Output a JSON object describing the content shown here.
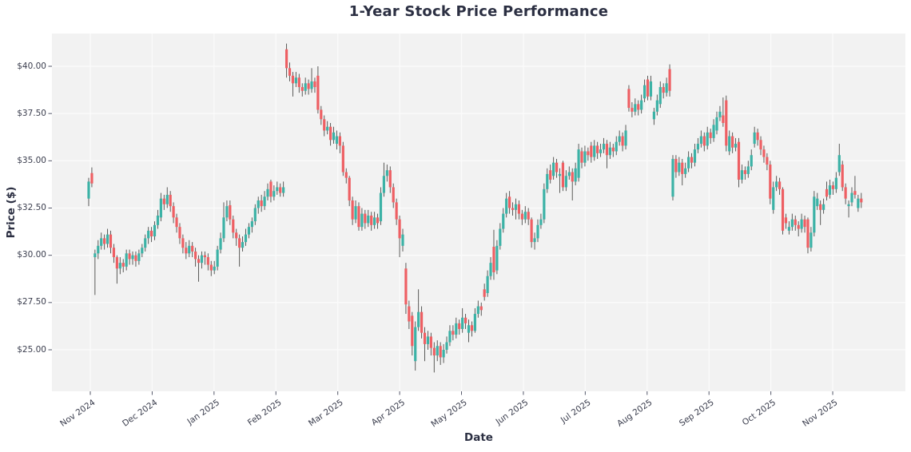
{
  "figure": {
    "title": "1-Year Stock Price Performance"
  },
  "chart_data": {
    "type": "candlestick",
    "title": "1-Year Stock Price Performance",
    "xlabel": "Date",
    "ylabel": "Price ($)",
    "x_tick_labels": [
      "Nov 2024",
      "Dec 2024",
      "Jan 2025",
      "Feb 2025",
      "Mar 2025",
      "Apr 2025",
      "May 2025",
      "Jun 2025",
      "Jul 2025",
      "Aug 2025",
      "Sep 2025",
      "Oct 2025",
      "Nov 2025"
    ],
    "y_ticks": [
      25.0,
      27.5,
      30.0,
      32.5,
      35.0,
      37.5,
      40.0
    ],
    "y_tick_labels": [
      "$25.00",
      "$27.50",
      "$30.00",
      "$32.50",
      "$35.00",
      "$37.50",
      "$40.00"
    ],
    "ylim": [
      21.9,
      41.75
    ],
    "grid": true,
    "legend": "none",
    "up_color": "#3cb2a6",
    "down_color": "#ee5f63",
    "wick_color": "#4a4a48",
    "plot_bg": "#f2f2f2",
    "grid_color": "#fbfbfb",
    "candles_format": [
      "open",
      "high",
      "low",
      "close"
    ],
    "candles": [
      [
        33.0,
        34.1,
        32.6,
        33.9
      ],
      [
        34.35,
        34.65,
        33.6,
        33.8
      ],
      [
        29.9,
        30.3,
        27.9,
        30.1
      ],
      [
        30.1,
        30.8,
        29.8,
        30.5
      ],
      [
        30.5,
        31.2,
        30.3,
        30.9
      ],
      [
        30.9,
        31.1,
        30.3,
        30.6
      ],
      [
        30.6,
        31.4,
        30.4,
        31.1
      ],
      [
        31.1,
        31.3,
        30.1,
        30.4
      ],
      [
        30.4,
        30.6,
        29.6,
        29.9
      ],
      [
        29.9,
        30.0,
        28.5,
        29.3
      ],
      [
        29.3,
        29.9,
        29.0,
        29.6
      ],
      [
        29.6,
        29.8,
        29.1,
        29.4
      ],
      [
        29.4,
        30.3,
        29.2,
        30.1
      ],
      [
        30.1,
        30.3,
        29.5,
        29.8
      ],
      [
        29.8,
        30.2,
        29.5,
        30.0
      ],
      [
        30.0,
        30.2,
        29.4,
        29.7
      ],
      [
        29.7,
        30.3,
        29.5,
        30.1
      ],
      [
        30.1,
        30.6,
        29.9,
        30.4
      ],
      [
        30.4,
        31.1,
        30.2,
        30.9
      ],
      [
        30.9,
        31.5,
        30.6,
        31.3
      ],
      [
        31.3,
        31.5,
        30.7,
        31.0
      ],
      [
        31.0,
        31.8,
        30.8,
        31.6
      ],
      [
        31.6,
        32.4,
        31.4,
        32.1
      ],
      [
        32.0,
        33.3,
        31.8,
        33.0
      ],
      [
        33.0,
        33.2,
        32.4,
        32.7
      ],
      [
        32.7,
        33.6,
        32.5,
        33.2
      ],
      [
        33.2,
        33.4,
        32.3,
        32.6
      ],
      [
        32.6,
        32.8,
        31.7,
        32.0
      ],
      [
        32.0,
        32.2,
        31.2,
        31.5
      ],
      [
        31.5,
        31.7,
        30.6,
        30.9
      ],
      [
        30.9,
        31.1,
        30.1,
        30.4
      ],
      [
        30.4,
        30.7,
        29.8,
        30.1
      ],
      [
        30.1,
        30.8,
        29.9,
        30.5
      ],
      [
        30.5,
        30.7,
        29.9,
        30.2
      ],
      [
        30.2,
        30.4,
        29.4,
        29.8
      ],
      [
        29.8,
        30.0,
        28.6,
        29.6
      ],
      [
        29.6,
        30.2,
        29.3,
        30.0
      ],
      [
        30.0,
        30.2,
        29.5,
        29.9
      ],
      [
        29.9,
        30.1,
        29.2,
        29.5
      ],
      [
        29.5,
        29.7,
        28.9,
        29.2
      ],
      [
        29.2,
        29.7,
        29.0,
        29.4
      ],
      [
        29.4,
        30.5,
        29.2,
        30.3
      ],
      [
        30.3,
        31.2,
        30.1,
        30.9
      ],
      [
        30.9,
        32.8,
        30.7,
        32.0
      ],
      [
        32.0,
        32.9,
        31.8,
        32.6
      ],
      [
        32.65,
        32.9,
        31.6,
        31.9
      ],
      [
        31.9,
        32.1,
        30.9,
        31.2
      ],
      [
        31.2,
        31.4,
        30.5,
        30.9
      ],
      [
        30.9,
        31.1,
        29.4,
        30.4
      ],
      [
        30.4,
        31.0,
        30.2,
        30.7
      ],
      [
        30.7,
        31.4,
        30.5,
        31.1
      ],
      [
        31.1,
        31.7,
        30.9,
        31.5
      ],
      [
        31.5,
        32.0,
        31.2,
        31.8
      ],
      [
        31.8,
        32.7,
        31.6,
        32.5
      ],
      [
        32.5,
        33.1,
        32.2,
        32.9
      ],
      [
        32.9,
        33.2,
        32.3,
        32.6
      ],
      [
        32.6,
        33.4,
        32.4,
        33.1
      ],
      [
        33.1,
        33.8,
        32.9,
        33.5
      ],
      [
        33.9,
        34.0,
        32.8,
        33.1
      ],
      [
        33.1,
        33.7,
        32.9,
        33.4
      ],
      [
        33.4,
        33.9,
        33.2,
        33.6
      ],
      [
        33.6,
        33.8,
        33.1,
        33.3
      ],
      [
        33.3,
        33.9,
        33.1,
        33.6
      ],
      [
        40.9,
        41.2,
        39.4,
        39.9
      ],
      [
        39.9,
        40.2,
        39.2,
        39.5
      ],
      [
        39.5,
        39.7,
        38.4,
        39.1
      ],
      [
        39.1,
        39.7,
        38.9,
        39.4
      ],
      [
        39.4,
        39.6,
        38.6,
        38.9
      ],
      [
        38.9,
        39.1,
        38.4,
        38.7
      ],
      [
        38.7,
        39.4,
        38.5,
        39.1
      ],
      [
        39.1,
        39.3,
        38.5,
        38.8
      ],
      [
        38.8,
        39.9,
        38.6,
        39.2
      ],
      [
        39.2,
        39.4,
        38.6,
        38.9
      ],
      [
        39.5,
        40.0,
        37.5,
        37.7
      ],
      [
        37.7,
        37.9,
        36.9,
        37.2
      ],
      [
        37.2,
        37.4,
        36.3,
        36.6
      ],
      [
        36.6,
        37.1,
        36.4,
        36.8
      ],
      [
        36.8,
        37.0,
        35.8,
        36.1
      ],
      [
        36.1,
        36.8,
        35.9,
        36.5
      ],
      [
        35.9,
        36.6,
        35.6,
        36.3
      ],
      [
        36.3,
        36.5,
        35.4,
        35.8
      ],
      [
        35.8,
        36.0,
        34.2,
        34.4
      ],
      [
        34.4,
        34.6,
        33.8,
        34.1
      ],
      [
        34.1,
        34.2,
        32.6,
        32.9
      ],
      [
        32.9,
        33.1,
        31.6,
        31.9
      ],
      [
        31.9,
        32.9,
        31.7,
        32.6
      ],
      [
        32.6,
        32.8,
        31.3,
        31.5
      ],
      [
        31.5,
        32.5,
        31.3,
        32.2
      ],
      [
        32.2,
        32.4,
        31.4,
        31.7
      ],
      [
        31.7,
        32.4,
        31.5,
        32.1
      ],
      [
        32.1,
        32.3,
        31.3,
        31.6
      ],
      [
        31.6,
        32.3,
        31.4,
        32.0
      ],
      [
        32.0,
        32.2,
        31.4,
        31.7
      ],
      [
        31.8,
        33.6,
        31.6,
        33.3
      ],
      [
        33.3,
        34.9,
        33.1,
        34.2
      ],
      [
        34.2,
        34.8,
        33.9,
        34.5
      ],
      [
        34.5,
        34.7,
        33.3,
        33.6
      ],
      [
        33.6,
        33.8,
        32.5,
        32.8
      ],
      [
        32.8,
        33.0,
        31.6,
        31.9
      ],
      [
        31.9,
        32.1,
        29.9,
        30.9
      ],
      [
        30.5,
        31.4,
        30.2,
        31.1
      ],
      [
        29.3,
        29.6,
        26.9,
        27.4
      ],
      [
        27.3,
        27.6,
        26.1,
        26.5
      ],
      [
        26.8,
        27.0,
        24.7,
        25.2
      ],
      [
        24.4,
        26.5,
        23.9,
        26.2
      ],
      [
        26.2,
        28.2,
        26.0,
        27.0
      ],
      [
        27.0,
        27.3,
        25.6,
        25.9
      ],
      [
        25.9,
        26.2,
        24.4,
        25.3
      ],
      [
        25.3,
        26.0,
        25.0,
        25.7
      ],
      [
        25.7,
        25.9,
        24.7,
        25.1
      ],
      [
        25.1,
        25.4,
        23.8,
        24.7
      ],
      [
        24.7,
        25.5,
        24.4,
        25.2
      ],
      [
        25.2,
        25.4,
        24.2,
        24.6
      ],
      [
        24.6,
        25.3,
        24.3,
        25.0
      ],
      [
        25.0,
        25.7,
        24.8,
        25.4
      ],
      [
        25.4,
        26.3,
        25.2,
        26.0
      ],
      [
        26.0,
        26.3,
        25.5,
        25.8
      ],
      [
        25.8,
        26.7,
        25.6,
        26.4
      ],
      [
        26.4,
        26.6,
        25.8,
        26.1
      ],
      [
        26.1,
        27.2,
        25.9,
        26.7
      ],
      [
        26.7,
        26.9,
        26.1,
        26.4
      ],
      [
        25.9,
        26.6,
        25.4,
        26.3
      ],
      [
        26.3,
        26.5,
        25.7,
        26.0
      ],
      [
        26.0,
        27.2,
        25.9,
        26.9
      ],
      [
        26.9,
        27.6,
        26.7,
        27.3
      ],
      [
        27.3,
        27.5,
        26.8,
        27.1
      ],
      [
        28.2,
        28.5,
        27.6,
        27.8
      ],
      [
        28.0,
        29.2,
        27.8,
        28.9
      ],
      [
        28.9,
        29.9,
        28.7,
        29.6
      ],
      [
        30.45,
        31.35,
        28.7,
        29.1
      ],
      [
        29.2,
        30.8,
        29.0,
        30.5
      ],
      [
        30.5,
        31.7,
        30.3,
        31.4
      ],
      [
        31.4,
        32.5,
        31.2,
        32.2
      ],
      [
        32.2,
        33.3,
        32.0,
        33.0
      ],
      [
        33.1,
        33.4,
        32.2,
        32.5
      ],
      [
        32.5,
        32.8,
        32.1,
        32.4
      ],
      [
        32.4,
        33.0,
        31.9,
        32.7
      ],
      [
        32.7,
        32.9,
        31.9,
        32.2
      ],
      [
        32.2,
        32.4,
        31.6,
        31.9
      ],
      [
        31.9,
        32.6,
        31.7,
        32.3
      ],
      [
        32.3,
        32.5,
        31.6,
        31.9
      ],
      [
        31.9,
        32.0,
        30.4,
        30.7
      ],
      [
        30.7,
        31.2,
        30.3,
        30.9
      ],
      [
        30.9,
        31.9,
        30.7,
        31.6
      ],
      [
        31.6,
        32.2,
        31.4,
        31.9
      ],
      [
        31.9,
        33.8,
        31.7,
        33.5
      ],
      [
        33.5,
        34.6,
        33.3,
        34.3
      ],
      [
        34.5,
        34.8,
        33.8,
        34.0
      ],
      [
        34.2,
        35.2,
        34.0,
        34.9
      ],
      [
        34.9,
        35.1,
        34.1,
        34.4
      ],
      [
        34.2,
        34.6,
        33.3,
        34.3
      ],
      [
        34.9,
        35.0,
        33.4,
        33.6
      ],
      [
        33.6,
        34.5,
        33.4,
        34.2
      ],
      [
        34.2,
        34.7,
        34.0,
        34.4
      ],
      [
        34.4,
        34.6,
        32.9,
        33.9
      ],
      [
        33.9,
        34.9,
        33.7,
        34.6
      ],
      [
        34.1,
        35.9,
        33.9,
        35.6
      ],
      [
        35.5,
        35.7,
        34.6,
        34.9
      ],
      [
        34.9,
        35.8,
        34.7,
        35.5
      ],
      [
        35.5,
        35.7,
        35.0,
        35.3
      ],
      [
        35.8,
        36.0,
        34.9,
        35.2
      ],
      [
        35.2,
        36.1,
        35.0,
        35.8
      ],
      [
        35.8,
        36.0,
        35.1,
        35.4
      ],
      [
        35.4,
        35.9,
        35.2,
        35.6
      ],
      [
        35.6,
        36.2,
        35.4,
        35.9
      ],
      [
        35.9,
        36.1,
        34.6,
        35.3
      ],
      [
        35.3,
        36.0,
        35.1,
        35.7
      ],
      [
        35.7,
        35.9,
        35.2,
        35.5
      ],
      [
        35.5,
        36.3,
        35.3,
        36.0
      ],
      [
        36.0,
        36.6,
        35.8,
        36.3
      ],
      [
        36.3,
        36.5,
        35.5,
        35.8
      ],
      [
        35.8,
        36.9,
        35.6,
        36.6
      ],
      [
        38.8,
        39.0,
        37.6,
        37.8
      ],
      [
        37.8,
        38.1,
        37.3,
        37.6
      ],
      [
        37.6,
        38.3,
        37.4,
        38.0
      ],
      [
        38.0,
        38.2,
        37.4,
        37.7
      ],
      [
        37.7,
        38.5,
        37.5,
        38.2
      ],
      [
        38.3,
        39.3,
        38.1,
        39.0
      ],
      [
        39.3,
        39.5,
        38.2,
        38.4
      ],
      [
        38.4,
        39.5,
        38.2,
        39.2
      ],
      [
        37.2,
        37.8,
        36.9,
        37.6
      ],
      [
        37.6,
        38.5,
        37.4,
        38.2
      ],
      [
        38.0,
        39.2,
        37.8,
        38.9
      ],
      [
        38.9,
        39.1,
        38.3,
        38.6
      ],
      [
        38.6,
        39.4,
        38.4,
        39.1
      ],
      [
        39.85,
        40.1,
        38.4,
        38.7
      ],
      [
        33.1,
        35.3,
        32.9,
        35.1
      ],
      [
        35.1,
        35.3,
        34.1,
        34.4
      ],
      [
        34.4,
        35.2,
        34.2,
        34.9
      ],
      [
        34.9,
        35.1,
        33.7,
        34.3
      ],
      [
        34.3,
        34.9,
        34.1,
        34.6
      ],
      [
        34.6,
        35.5,
        34.4,
        35.2
      ],
      [
        35.2,
        35.4,
        34.6,
        34.9
      ],
      [
        34.9,
        35.9,
        34.7,
        35.6
      ],
      [
        35.6,
        36.2,
        35.4,
        35.9
      ],
      [
        35.9,
        36.6,
        35.7,
        36.3
      ],
      [
        36.3,
        36.5,
        35.5,
        35.8
      ],
      [
        35.8,
        36.8,
        35.6,
        36.5
      ],
      [
        36.5,
        36.7,
        35.9,
        36.2
      ],
      [
        36.2,
        37.2,
        36.0,
        36.9
      ],
      [
        36.6,
        37.6,
        36.4,
        37.3
      ],
      [
        37.3,
        37.9,
        37.1,
        37.6
      ],
      [
        37.4,
        38.35,
        36.8,
        37.0
      ],
      [
        38.2,
        38.45,
        35.5,
        35.8
      ],
      [
        35.5,
        36.6,
        35.3,
        36.3
      ],
      [
        36.3,
        36.5,
        35.4,
        35.7
      ],
      [
        35.7,
        36.2,
        35.5,
        35.9
      ],
      [
        36.0,
        36.2,
        33.6,
        34.0
      ],
      [
        34.0,
        34.8,
        33.8,
        34.5
      ],
      [
        34.5,
        34.7,
        34.0,
        34.3
      ],
      [
        34.3,
        35.0,
        34.1,
        34.7
      ],
      [
        34.7,
        35.6,
        34.5,
        35.3
      ],
      [
        35.9,
        36.8,
        35.7,
        36.5
      ],
      [
        36.5,
        36.7,
        35.8,
        36.1
      ],
      [
        36.1,
        36.3,
        35.3,
        35.6
      ],
      [
        35.6,
        35.8,
        34.9,
        35.2
      ],
      [
        35.2,
        35.4,
        34.5,
        34.8
      ],
      [
        34.8,
        35.0,
        32.7,
        33.0
      ],
      [
        32.4,
        33.9,
        32.2,
        33.6
      ],
      [
        33.6,
        34.2,
        33.4,
        33.9
      ],
      [
        33.9,
        34.1,
        33.2,
        33.5
      ],
      [
        33.5,
        33.6,
        31.1,
        31.3
      ],
      [
        32.0,
        32.2,
        31.4,
        31.7
      ],
      [
        31.3,
        31.8,
        31.1,
        31.5
      ],
      [
        31.5,
        32.2,
        31.3,
        31.9
      ],
      [
        31.9,
        32.1,
        31.3,
        31.6
      ],
      [
        31.6,
        31.8,
        31.0,
        31.4
      ],
      [
        31.4,
        32.2,
        31.2,
        31.9
      ],
      [
        31.9,
        32.1,
        31.2,
        31.5
      ],
      [
        31.9,
        32.0,
        30.1,
        30.4
      ],
      [
        30.4,
        31.5,
        30.2,
        31.2
      ],
      [
        31.2,
        33.4,
        31.0,
        33.1
      ],
      [
        32.6,
        33.3,
        32.4,
        33.0
      ],
      [
        32.7,
        32.9,
        31.6,
        32.4
      ],
      [
        32.4,
        33.0,
        32.2,
        32.7
      ],
      [
        33.5,
        33.9,
        32.9,
        33.1
      ],
      [
        33.2,
        34.0,
        33.0,
        33.7
      ],
      [
        33.7,
        33.9,
        33.2,
        33.5
      ],
      [
        33.5,
        34.4,
        33.3,
        34.1
      ],
      [
        34.4,
        35.9,
        34.2,
        35.3
      ],
      [
        34.8,
        35.0,
        33.4,
        33.6
      ],
      [
        33.6,
        33.8,
        32.7,
        33.0
      ],
      [
        32.6,
        32.9,
        32.0,
        32.7
      ],
      [
        32.8,
        33.6,
        32.6,
        33.3
      ],
      [
        33.4,
        34.2,
        33.0,
        33.2
      ],
      [
        32.5,
        33.2,
        32.3,
        33.0
      ],
      [
        33.0,
        33.3,
        32.5,
        32.8
      ]
    ]
  }
}
